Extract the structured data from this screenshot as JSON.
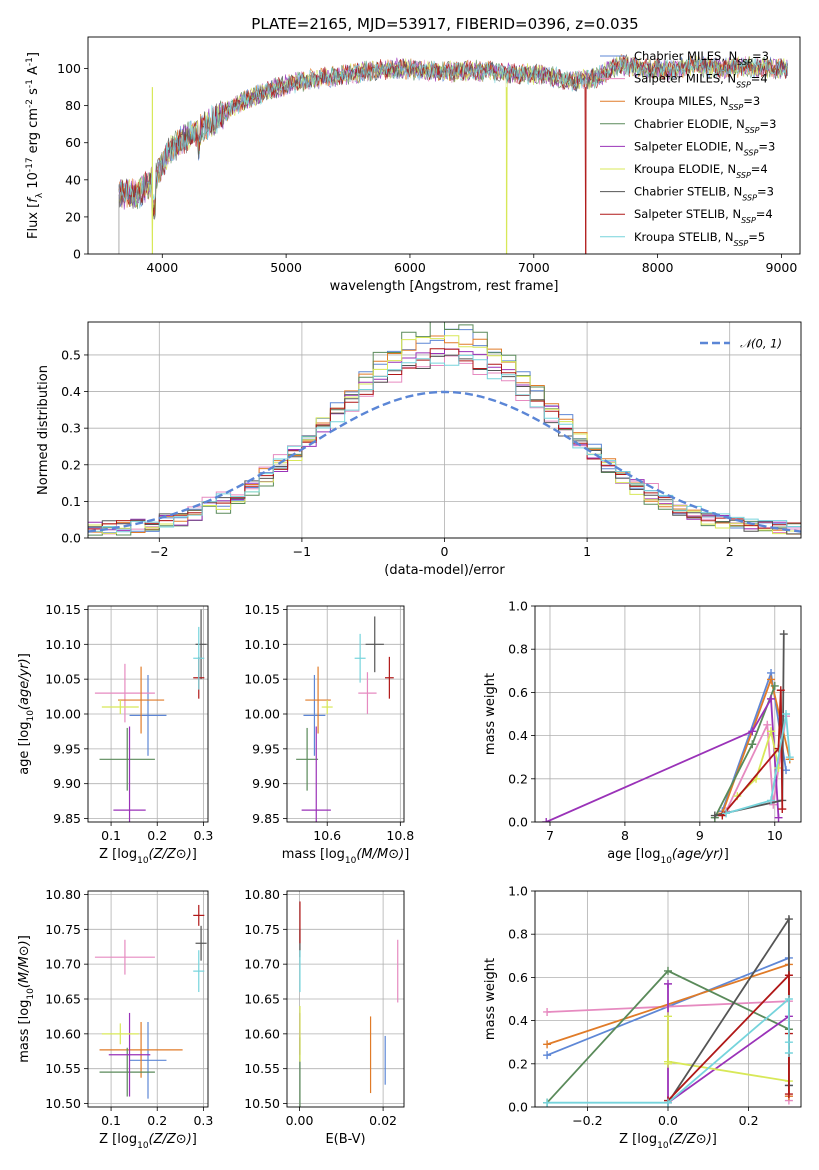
{
  "figure_title": "PLATE=2165, MJD=53917, FIBERID=0396, z=0.035",
  "models": [
    {
      "name": "Chabrier MILES, N_SSP=3",
      "color": "#5e87d6"
    },
    {
      "name": "Salpeter MILES, N_SSP=4",
      "color": "#e68ac0"
    },
    {
      "name": "Kroupa MILES, N_SSP=3",
      "color": "#e07b28"
    },
    {
      "name": "Chabrier ELODIE, N_SSP=3",
      "color": "#5a8a5a"
    },
    {
      "name": "Salpeter ELODIE, N_SSP=3",
      "color": "#9a32b8"
    },
    {
      "name": "Kroupa ELODIE, N_SSP=4",
      "color": "#d8e858"
    },
    {
      "name": "Chabrier STELIB, N_SSP=3",
      "color": "#555555"
    },
    {
      "name": "Salpeter STELIB, N_SSP=4",
      "color": "#b01818"
    },
    {
      "name": "Kroupa STELIB, N_SSP=5",
      "color": "#76d4dc"
    }
  ],
  "chart_data": [
    {
      "id": "spectrum",
      "type": "line",
      "title": "PLATE=2165, MJD=53917, FIBERID=0396, z=0.035",
      "xlabel": "wavelength [Angstrom, rest frame]",
      "ylabel": "Flux [f_λ 10^-17 erg cm^-2 s^-1 A^-1]",
      "xlim": [
        3400,
        9150
      ],
      "ylim": [
        0,
        117
      ],
      "xticks": [
        4000,
        5000,
        6000,
        7000,
        8000,
        9000
      ],
      "yticks": [
        0,
        20,
        40,
        60,
        80,
        100
      ],
      "legend_position": "right",
      "spectrum_range": [
        3650,
        9050
      ],
      "continuum": {
        "x": [
          3650,
          3800,
          3950,
          4050,
          4200,
          4350,
          4500,
          4700,
          4900,
          5100,
          5300,
          5500,
          5700,
          5900,
          6100,
          6300,
          6500,
          6700,
          6900,
          7100,
          7300,
          7500,
          7700,
          7900,
          8100,
          8300,
          8500,
          8700,
          9050
        ],
        "y": [
          33,
          32,
          42,
          55,
          63,
          69,
          76,
          84,
          89,
          93,
          95,
          97,
          99,
          100,
          99,
          98,
          99,
          98,
          97,
          97,
          93,
          95,
          102,
          100,
          99,
          102,
          100,
          101,
          100
        ]
      },
      "dropouts": [
        {
          "series": "Salpeter STELIB, N_SSP=4",
          "x": 7420,
          "y": 0
        },
        {
          "series": "Kroupa ELODIE, N_SSP=4",
          "x": 6780,
          "y": 0
        },
        {
          "series": "Kroupa ELODIE, N_SSP=4",
          "x": 3920,
          "y": 0
        }
      ]
    },
    {
      "id": "residuals",
      "type": "histogram",
      "xlabel": "(data-model)/error",
      "ylabel": "Normed distribution",
      "xlim": [
        -2.5,
        2.5
      ],
      "ylim": [
        0,
        0.59
      ],
      "xticks": [
        -2,
        -1,
        0,
        1,
        2
      ],
      "yticks": [
        0.0,
        0.1,
        0.2,
        0.3,
        0.4,
        0.5
      ],
      "bin_width": 0.1,
      "reference_curve": {
        "name": "𝒩(0, 1)",
        "color": "#5b86d6",
        "mean": 0,
        "sigma": 1
      },
      "legend_position": "top-right",
      "series": [
        {
          "name": "Chabrier MILES, N_SSP=3",
          "peak": 0.54,
          "sigma": 0.78,
          "seed": 1
        },
        {
          "name": "Salpeter MILES, N_SSP=4",
          "peak": 0.46,
          "sigma": 0.86,
          "seed": 2
        },
        {
          "name": "Kroupa MILES, N_SSP=3",
          "peak": 0.53,
          "sigma": 0.79,
          "seed": 3
        },
        {
          "name": "Chabrier ELODIE, N_SSP=3",
          "peak": 0.56,
          "sigma": 0.75,
          "seed": 4
        },
        {
          "name": "Salpeter ELODIE, N_SSP=3",
          "peak": 0.5,
          "sigma": 0.8,
          "seed": 5
        },
        {
          "name": "Kroupa ELODIE, N_SSP=4",
          "peak": 0.53,
          "sigma": 0.77,
          "seed": 6
        },
        {
          "name": "Chabrier STELIB, N_SSP=3",
          "peak": 0.47,
          "sigma": 0.82,
          "seed": 7
        },
        {
          "name": "Salpeter STELIB, N_SSP=4",
          "peak": 0.48,
          "sigma": 0.82,
          "seed": 8
        },
        {
          "name": "Kroupa STELIB, N_SSP=5",
          "peak": 0.47,
          "sigma": 0.83,
          "seed": 9
        }
      ]
    },
    {
      "id": "age_vs_Z",
      "type": "errorbar",
      "xlabel": "Z [log10(Z/Z⊙)]",
      "ylabel": "age  [log10(age/yr)]",
      "xlim": [
        0.05,
        0.31
      ],
      "ylim": [
        9.845,
        10.155
      ],
      "xticks": [
        0.1,
        0.2,
        0.3
      ],
      "yticks": [
        9.85,
        9.9,
        9.95,
        10.0,
        10.05,
        10.1,
        10.15
      ],
      "points": [
        {
          "model": "Chabrier MILES, N_SSP=3",
          "x": 0.18,
          "y": 9.998,
          "xerr": 0.04,
          "yerr": 0.058
        },
        {
          "model": "Salpeter MILES, N_SSP=4",
          "x": 0.13,
          "y": 10.03,
          "xerr": 0.065,
          "yerr": 0.042
        },
        {
          "model": "Kroupa MILES, N_SSP=3",
          "x": 0.165,
          "y": 10.02,
          "xerr": 0.05,
          "yerr": 0.048
        },
        {
          "model": "Chabrier ELODIE, N_SSP=3",
          "x": 0.135,
          "y": 9.935,
          "xerr": 0.06,
          "yerr": 0.045
        },
        {
          "model": "Salpeter ELODIE, N_SSP=3",
          "x": 0.14,
          "y": 9.862,
          "xerr": 0.035,
          "yerr": 0.12
        },
        {
          "model": "Kroupa ELODIE, N_SSP=4",
          "x": 0.12,
          "y": 10.01,
          "xerr": 0.04,
          "yerr": 0.01
        },
        {
          "model": "Chabrier STELIB, N_SSP=3",
          "x": 0.295,
          "y": 10.1,
          "xerr": 0.012,
          "yerr": 0.05
        },
        {
          "model": "Salpeter STELIB, N_SSP=4",
          "x": 0.29,
          "y": 10.052,
          "xerr": 0.012,
          "yerr": 0.03
        },
        {
          "model": "Kroupa STELIB, N_SSP=5",
          "x": 0.29,
          "y": 10.08,
          "xerr": 0.012,
          "yerr": 0.045
        }
      ]
    },
    {
      "id": "age_vs_mass",
      "type": "errorbar",
      "xlabel": "mass [log10(M/M⊙)]",
      "ylabel": "",
      "xlim": [
        10.49,
        10.81
      ],
      "ylim": [
        9.845,
        10.155
      ],
      "xticks": [
        10.6,
        10.8
      ],
      "yticks": [
        9.85,
        9.9,
        9.95,
        10.0,
        10.05,
        10.1,
        10.15
      ],
      "points": [
        {
          "model": "Chabrier MILES, N_SSP=3",
          "x": 10.565,
          "y": 9.998,
          "xerr": 0.03,
          "yerr": 0.058
        },
        {
          "model": "Salpeter MILES, N_SSP=4",
          "x": 10.71,
          "y": 10.03,
          "xerr": 0.025,
          "yerr": 0.03
        },
        {
          "model": "Kroupa MILES, N_SSP=3",
          "x": 10.575,
          "y": 10.02,
          "xerr": 0.035,
          "yerr": 0.048
        },
        {
          "model": "Chabrier ELODIE, N_SSP=3",
          "x": 10.545,
          "y": 9.935,
          "xerr": 0.03,
          "yerr": 0.045
        },
        {
          "model": "Salpeter ELODIE, N_SSP=3",
          "x": 10.57,
          "y": 9.862,
          "xerr": 0.04,
          "yerr": 0.12
        },
        {
          "model": "Kroupa ELODIE, N_SSP=4",
          "x": 10.6,
          "y": 10.01,
          "xerr": 0.015,
          "yerr": 0.01
        },
        {
          "model": "Chabrier STELIB, N_SSP=3",
          "x": 10.73,
          "y": 10.1,
          "xerr": 0.025,
          "yerr": 0.04
        },
        {
          "model": "Salpeter STELIB, N_SSP=4",
          "x": 10.77,
          "y": 10.052,
          "xerr": 0.012,
          "yerr": 0.03
        },
        {
          "model": "Kroupa STELIB, N_SSP=5",
          "x": 10.69,
          "y": 10.08,
          "xerr": 0.015,
          "yerr": 0.035
        }
      ]
    },
    {
      "id": "massweight_vs_age",
      "type": "line",
      "xlabel": "age  [log10(age/yr)]",
      "ylabel": "mass weight",
      "xlim": [
        6.8,
        10.35
      ],
      "ylim": [
        0,
        1
      ],
      "xticks": [
        7,
        8,
        9,
        10
      ],
      "yticks": [
        0,
        0.2,
        0.4,
        0.6,
        0.8,
        1.0
      ],
      "series": [
        {
          "name": "Chabrier MILES, N_SSP=3",
          "x": [
            9.3,
            9.95,
            10.15
          ],
          "y": [
            0.05,
            0.69,
            0.24
          ]
        },
        {
          "name": "Salpeter MILES, N_SSP=4",
          "x": [
            9.35,
            9.9,
            9.98,
            10.15
          ],
          "y": [
            0.05,
            0.45,
            0.08,
            0.49
          ]
        },
        {
          "name": "Kroupa MILES, N_SSP=3",
          "x": [
            9.3,
            9.95,
            10.2
          ],
          "y": [
            0.04,
            0.66,
            0.29
          ]
        },
        {
          "name": "Chabrier ELODIE, N_SSP=3",
          "x": [
            9.2,
            9.7,
            10.0
          ],
          "y": [
            0.02,
            0.36,
            0.63
          ]
        },
        {
          "name": "Salpeter ELODIE, N_SSP=3",
          "x": [
            6.95,
            9.7,
            9.95,
            10.05
          ],
          "y": [
            0.0,
            0.42,
            0.57,
            0.02
          ]
        },
        {
          "name": "Kroupa ELODIE, N_SSP=4",
          "x": [
            9.5,
            9.75,
            9.95,
            10.05
          ],
          "y": [
            0.12,
            0.2,
            0.42,
            0.25
          ]
        },
        {
          "name": "Chabrier STELIB, N_SSP=3",
          "x": [
            9.2,
            10.1,
            10.12
          ],
          "y": [
            0.03,
            0.1,
            0.87
          ]
        },
        {
          "name": "Salpeter STELIB, N_SSP=4",
          "x": [
            9.3,
            10.05,
            10.08,
            10.1
          ],
          "y": [
            0.03,
            0.34,
            0.61,
            0.06
          ]
        },
        {
          "name": "Kroupa STELIB, N_SSP=5",
          "x": [
            9.35,
            9.95,
            10.15,
            10.2
          ],
          "y": [
            0.04,
            0.1,
            0.5,
            0.3
          ]
        }
      ]
    },
    {
      "id": "mass_vs_Z",
      "type": "errorbar",
      "xlabel": "Z [log10(Z/Z⊙)]",
      "ylabel": "mass [log10(M/M⊙)]",
      "xlim": [
        0.05,
        0.31
      ],
      "ylim": [
        10.495,
        10.805
      ],
      "xticks": [
        0.1,
        0.2,
        0.3
      ],
      "yticks": [
        10.5,
        10.55,
        10.6,
        10.65,
        10.7,
        10.75,
        10.8
      ],
      "points": [
        {
          "model": "Chabrier MILES, N_SSP=3",
          "x": 0.18,
          "y": 10.562,
          "xerr": 0.04,
          "yerr": 0.055
        },
        {
          "model": "Salpeter MILES, N_SSP=4",
          "x": 0.13,
          "y": 10.71,
          "xerr": 0.065,
          "yerr": 0.025
        },
        {
          "model": "Kroupa MILES, N_SSP=3",
          "x": 0.165,
          "y": 10.577,
          "xerr": 0.09,
          "yerr": 0.04
        },
        {
          "model": "Chabrier ELODIE, N_SSP=3",
          "x": 0.135,
          "y": 10.545,
          "xerr": 0.06,
          "yerr": 0.035
        },
        {
          "model": "Salpeter ELODIE, N_SSP=3",
          "x": 0.14,
          "y": 10.57,
          "xerr": 0.045,
          "yerr": 0.06
        },
        {
          "model": "Kroupa ELODIE, N_SSP=4",
          "x": 0.12,
          "y": 10.6,
          "xerr": 0.04,
          "yerr": 0.015
        },
        {
          "model": "Chabrier STELIB, N_SSP=3",
          "x": 0.295,
          "y": 10.73,
          "xerr": 0.012,
          "yerr": 0.025
        },
        {
          "model": "Salpeter STELIB, N_SSP=4",
          "x": 0.29,
          "y": 10.77,
          "xerr": 0.012,
          "yerr": 0.015
        },
        {
          "model": "Kroupa STELIB, N_SSP=5",
          "x": 0.29,
          "y": 10.69,
          "xerr": 0.012,
          "yerr": 0.03
        }
      ]
    },
    {
      "id": "mass_vs_ebv",
      "type": "errorbar",
      "xlabel": "E(B-V)",
      "ylabel": "",
      "xlim": [
        -0.003,
        0.025
      ],
      "ylim": [
        10.495,
        10.805
      ],
      "xticks": [
        0.0,
        0.02
      ],
      "yticks": [
        10.5,
        10.55,
        10.6,
        10.65,
        10.7,
        10.75,
        10.8
      ],
      "points": [
        {
          "model": "Chabrier MILES, N_SSP=3",
          "x": 0.0205,
          "y": 10.562,
          "xerr": 0,
          "yerr": 0.035
        },
        {
          "model": "Salpeter MILES, N_SSP=4",
          "x": 0.0235,
          "y": 10.69,
          "xerr": 0,
          "yerr": 0.045
        },
        {
          "model": "Kroupa MILES, N_SSP=3",
          "x": 0.017,
          "y": 10.57,
          "xerr": 0,
          "yerr": 0.055
        },
        {
          "model": "Chabrier ELODIE, N_SSP=3",
          "x": 0.0001,
          "y": 10.545,
          "xerr": 0,
          "yerr": 0.05
        },
        {
          "model": "Salpeter ELODIE, N_SSP=3",
          "x": 0.0001,
          "y": 10.6,
          "xerr": 0,
          "yerr": 0.03
        },
        {
          "model": "Kroupa ELODIE, N_SSP=4",
          "x": 0.0001,
          "y": 10.6,
          "xerr": 0,
          "yerr": 0.04
        },
        {
          "model": "Chabrier STELIB, N_SSP=3",
          "x": 0.0001,
          "y": 10.73,
          "xerr": 0,
          "yerr": 0.02
        },
        {
          "model": "Salpeter STELIB, N_SSP=4",
          "x": 0.0001,
          "y": 10.76,
          "xerr": 0,
          "yerr": 0.03
        },
        {
          "model": "Kroupa STELIB, N_SSP=5",
          "x": 0.0001,
          "y": 10.69,
          "xerr": 0,
          "yerr": 0.03
        }
      ]
    },
    {
      "id": "massweight_vs_Z",
      "type": "line",
      "xlabel": "Z [log10(Z/Z⊙)]",
      "ylabel": "mass weight",
      "xlim": [
        -0.33,
        0.33
      ],
      "ylim": [
        0,
        1
      ],
      "xticks": [
        -0.2,
        0.0,
        0.2
      ],
      "yticks": [
        0,
        0.2,
        0.4,
        0.6,
        0.8,
        1.0
      ],
      "series": [
        {
          "name": "Chabrier MILES, N_SSP=3",
          "x": [
            -0.3,
            0.3,
            0.3
          ],
          "y": [
            0.24,
            0.69,
            0.1
          ]
        },
        {
          "name": "Salpeter MILES, N_SSP=4",
          "x": [
            -0.3,
            0.3,
            0.3,
            0.3
          ],
          "y": [
            0.44,
            0.49,
            0.05,
            0.03
          ]
        },
        {
          "name": "Kroupa MILES, N_SSP=3",
          "x": [
            -0.3,
            0.3,
            0.3
          ],
          "y": [
            0.29,
            0.66,
            0.05
          ]
        },
        {
          "name": "Chabrier ELODIE, N_SSP=3",
          "x": [
            -0.3,
            0.0,
            0.3
          ],
          "y": [
            0.02,
            0.63,
            0.36
          ]
        },
        {
          "name": "Salpeter ELODIE, N_SSP=3",
          "x": [
            0.0,
            0.0,
            0.3
          ],
          "y": [
            0.57,
            0.02,
            0.42
          ]
        },
        {
          "name": "Kroupa ELODIE, N_SSP=4",
          "x": [
            0.0,
            0.0,
            0.0,
            0.3
          ],
          "y": [
            0.42,
            0.2,
            0.21,
            0.12
          ]
        },
        {
          "name": "Chabrier STELIB, N_SSP=3",
          "x": [
            0.0,
            0.3,
            0.3
          ],
          "y": [
            0.02,
            0.87,
            0.1
          ]
        },
        {
          "name": "Salpeter STELIB, N_SSP=4",
          "x": [
            0.0,
            0.3,
            0.3,
            0.3
          ],
          "y": [
            0.03,
            0.61,
            0.34,
            0.06
          ]
        },
        {
          "name": "Kroupa STELIB, N_SSP=5",
          "x": [
            -0.3,
            0.0,
            0.3,
            0.3,
            0.3
          ],
          "y": [
            0.02,
            0.02,
            0.5,
            0.3,
            0.25
          ]
        }
      ]
    }
  ]
}
